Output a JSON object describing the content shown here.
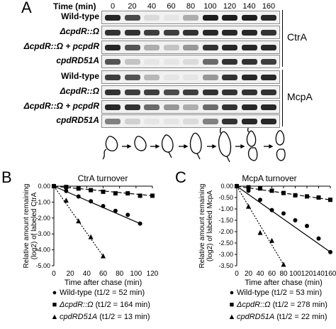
{
  "panel_a": {
    "letter": "A",
    "time_label": "Time (min)",
    "timepoints": [
      "0",
      "20",
      "40",
      "60",
      "80",
      "100",
      "120",
      "140",
      "160"
    ],
    "groups": [
      {
        "protein": "CtrA",
        "rows": [
          {
            "label": "Wild-type",
            "intensities": [
              0.9,
              0.75,
              0.1,
              0.05,
              0.3,
              0.95,
              0.95,
              0.95,
              0.9
            ]
          },
          {
            "label": "ΔcpdR::Ω",
            "intensities": [
              0.85,
              0.85,
              0.8,
              0.8,
              0.85,
              0.9,
              0.9,
              0.9,
              0.85
            ]
          },
          {
            "label": "ΔcpdR::Ω + pcpdR",
            "intensities": [
              0.9,
              0.7,
              0.3,
              0.2,
              0.4,
              0.85,
              0.9,
              0.9,
              0.9
            ]
          },
          {
            "label": "cpdRD51A",
            "intensities": [
              0.7,
              0.2,
              0.05,
              0.05,
              0.1,
              0.6,
              0.85,
              0.85,
              0.8
            ]
          }
        ]
      },
      {
        "protein": "McpA",
        "rows": [
          {
            "label": "Wild-type",
            "intensities": [
              0.8,
              0.7,
              0.25,
              0.05,
              0.05,
              0.4,
              0.85,
              0.9,
              0.9
            ]
          },
          {
            "label": "ΔcpdR::Ω",
            "intensities": [
              0.85,
              0.8,
              0.8,
              0.75,
              0.8,
              0.85,
              0.85,
              0.85,
              0.85
            ]
          },
          {
            "label": "ΔcpdR::Ω + pcpdR",
            "intensities": [
              0.9,
              0.85,
              0.6,
              0.4,
              0.3,
              0.6,
              0.85,
              0.9,
              0.9
            ]
          },
          {
            "label": "cpdRD51A",
            "intensities": [
              0.5,
              0.15,
              0.05,
              0.05,
              0.1,
              0.5,
              0.85,
              0.9,
              0.9
            ]
          }
        ]
      }
    ]
  },
  "panel_b": {
    "letter": "B",
    "title": "CtrA turnover"
  },
  "panel_c": {
    "letter": "C",
    "title": "McpA turnover"
  },
  "chart_data": [
    {
      "type": "scatter",
      "title": "CtrA turnover",
      "xlabel": "Time after chase (min)",
      "ylabel": "Relative amount remaining (log2) of labeled CtrA",
      "xlim": [
        0,
        120
      ],
      "ylim": [
        -5.0,
        0.0
      ],
      "xticks": [
        "0",
        "20",
        "40",
        "60",
        "80",
        "100",
        "120"
      ],
      "yticks": [
        "0.00",
        "-1.00",
        "-2.00",
        "-3.00",
        "-4.00",
        "-5.00"
      ],
      "series": [
        {
          "name": "Wild-type (t1/2 = 52 min)",
          "marker": "circle",
          "line": "solid",
          "x": [
            0,
            15,
            30,
            45,
            60,
            75,
            90,
            105
          ],
          "y": [
            0.0,
            -0.3,
            -0.65,
            -0.95,
            -1.25,
            -1.55,
            -1.8,
            -2.35
          ]
        },
        {
          "name": "ΔcpdR::Ω (t1/2 = 164 min)",
          "marker": "square",
          "line": "dashed",
          "x": [
            0,
            15,
            30,
            45,
            60,
            75,
            90,
            105,
            120
          ],
          "y": [
            0.0,
            -0.05,
            -0.15,
            -0.25,
            -0.35,
            -0.45,
            -0.45,
            -0.6,
            -0.6
          ]
        },
        {
          "name": "cpdRD51A (t1/2 = 13 min)",
          "marker": "triangle",
          "line": "dotted",
          "x": [
            0,
            15,
            30,
            45,
            60
          ],
          "y": [
            0.0,
            -0.9,
            -2.2,
            -3.2,
            -4.4
          ]
        }
      ]
    },
    {
      "type": "scatter",
      "title": "McpA turnover",
      "xlabel": "Time after chase (min)",
      "ylabel": "Relative amount remaining (log2) of labeled McpA",
      "xlim": [
        0,
        160
      ],
      "ylim": [
        -3.5,
        0.0
      ],
      "xticks": [
        "0",
        "20",
        "40",
        "60",
        "80",
        "100",
        "120",
        "140",
        "160"
      ],
      "yticks": [
        "0.00",
        "-0.50",
        "-1.00",
        "-1.50",
        "-2.00",
        "-2.50",
        "-3.00",
        "-3.50"
      ],
      "series": [
        {
          "name": "Wild-type (t1/2 = 53 min)",
          "marker": "circle",
          "line": "solid",
          "x": [
            0,
            20,
            40,
            60,
            80,
            100,
            120,
            140,
            160
          ],
          "y": [
            0.0,
            -0.2,
            -0.6,
            -1.05,
            -1.2,
            -1.5,
            -1.75,
            -2.3,
            -2.9
          ]
        },
        {
          "name": "ΔcpdR::Ω (t1/2 = 278 min)",
          "marker": "square",
          "line": "dashed",
          "x": [
            0,
            20,
            40,
            60,
            80,
            100,
            120,
            140,
            160
          ],
          "y": [
            0.0,
            -0.05,
            -0.1,
            -0.2,
            -0.3,
            -0.4,
            -0.45,
            -0.5,
            -0.6
          ]
        },
        {
          "name": "cpdRD51A (t1/2 = 22 min)",
          "marker": "triangle",
          "line": "dotted",
          "x": [
            0,
            20,
            40,
            60,
            80
          ],
          "y": [
            0.0,
            -0.9,
            -2.05,
            -2.4,
            -3.45
          ]
        }
      ]
    }
  ],
  "legend": [
    {
      "symbol": "●",
      "name": "Wild-type",
      "italic": false,
      "halflife": "(t1/2 = 52 min)"
    },
    {
      "symbol": "■",
      "name": "ΔcpdR::Ω",
      "italic": true,
      "halflife": "(t1/2 = 164 min)"
    },
    {
      "symbol": "▲",
      "name": "cpdRD51A",
      "italic": true,
      "halflife": "(t1/2 = 13 min)"
    }
  ],
  "legend_c": [
    {
      "symbol": "●",
      "name": "Wild-type",
      "italic": false,
      "halflife": "(t1/2 = 53 min)"
    },
    {
      "symbol": "■",
      "name": "ΔcpdR::Ω",
      "italic": true,
      "halflife": "(t1/2 = 278 min)"
    },
    {
      "symbol": "▲",
      "name": "cpdRD51A",
      "italic": true,
      "halflife": "(t1/2 = 22 min)"
    }
  ]
}
